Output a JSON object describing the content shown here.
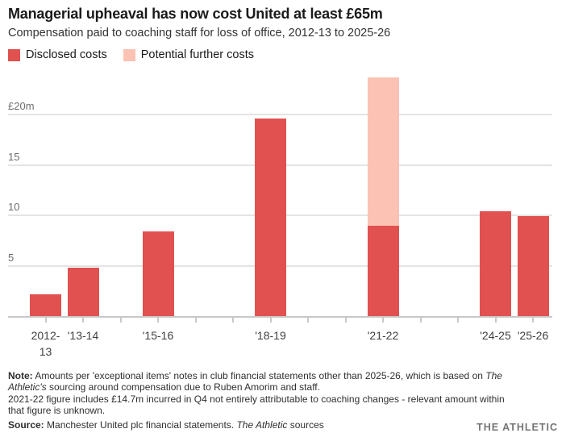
{
  "header": {
    "title": "Managerial upheaval has now cost United at least £65m",
    "subtitle": "Compensation paid to coaching staff for loss of office, 2012-13 to 2025-26"
  },
  "legend": [
    {
      "label": "Disclosed costs",
      "color": "#e0514f"
    },
    {
      "label": "Potential further costs",
      "color": "#fcc2b4"
    }
  ],
  "chart_data": {
    "type": "bar",
    "stacked": true,
    "title": "Managerial upheaval has now cost United at least £65m",
    "subtitle": "Compensation paid to coaching staff for loss of office, 2012-13 to 2025-26",
    "unit": "£m",
    "ylim": [
      0,
      24
    ],
    "grid": true,
    "legend_position": "top-left",
    "grid_color": "#e4e4e4",
    "axis_color": "#c8c8c8",
    "yticks": [
      {
        "value": 5,
        "label": "5"
      },
      {
        "value": 10,
        "label": "10"
      },
      {
        "value": 15,
        "label": "15"
      },
      {
        "value": 20,
        "label": "£20m"
      }
    ],
    "n_season_ticks": 14,
    "categories": [
      "2012-13",
      "'13-14",
      "'15-16",
      "'18-19",
      "'21-22",
      "'24-25",
      "'25-26"
    ],
    "series": [
      {
        "name": "Disclosed costs",
        "color": "#e0514f",
        "values": [
          2.2,
          4.8,
          8.4,
          19.6,
          9.0,
          10.4,
          9.9
        ]
      },
      {
        "name": "Potential further costs",
        "color": "#fcc2b4",
        "values": [
          0,
          0,
          0,
          0,
          14.7,
          0,
          0
        ]
      }
    ],
    "bars": [
      {
        "label": "2012-13",
        "label_lines": [
          "2012-",
          "13"
        ],
        "tick_index": 0
      },
      {
        "label": "'13-14",
        "label_lines": [
          "'13-14"
        ],
        "tick_index": 1
      },
      {
        "label": "'15-16",
        "label_lines": [
          "'15-16"
        ],
        "tick_index": 3
      },
      {
        "label": "'18-19",
        "label_lines": [
          "'18-19"
        ],
        "tick_index": 6
      },
      {
        "label": "'21-22",
        "label_lines": [
          "'21-22"
        ],
        "tick_index": 9
      },
      {
        "label": "'24-25",
        "label_lines": [
          "'24-25"
        ],
        "tick_index": 12
      },
      {
        "label": "'25-26",
        "label_lines": [
          "'25-26"
        ],
        "tick_index": 13
      }
    ]
  },
  "note": {
    "lines": [
      [
        {
          "t": "Note:",
          "b": true
        },
        {
          "t": " Amounts per 'exceptional items' notes in club financial statements other than 2025-26, which is based on "
        },
        {
          "t": "The",
          "i": true
        }
      ],
      [
        {
          "t": "Athletic's",
          "i": true
        },
        {
          "t": " sourcing around compensation due to Ruben Amorim and staff."
        }
      ],
      [
        {
          "t": "2021-22 figure includes £14.7m incurred in Q4 not entirely attributable to coaching changes - relevant amount within"
        }
      ],
      [
        {
          "t": "that figure is unknown."
        }
      ]
    ]
  },
  "source": {
    "segments": [
      {
        "t": "Source:",
        "b": true
      },
      {
        "t": " Manchester United plc financial statements. "
      },
      {
        "t": "The Athletic",
        "i": true
      },
      {
        "t": " sources"
      }
    ]
  },
  "wordmark": "THE ATHLETIC"
}
